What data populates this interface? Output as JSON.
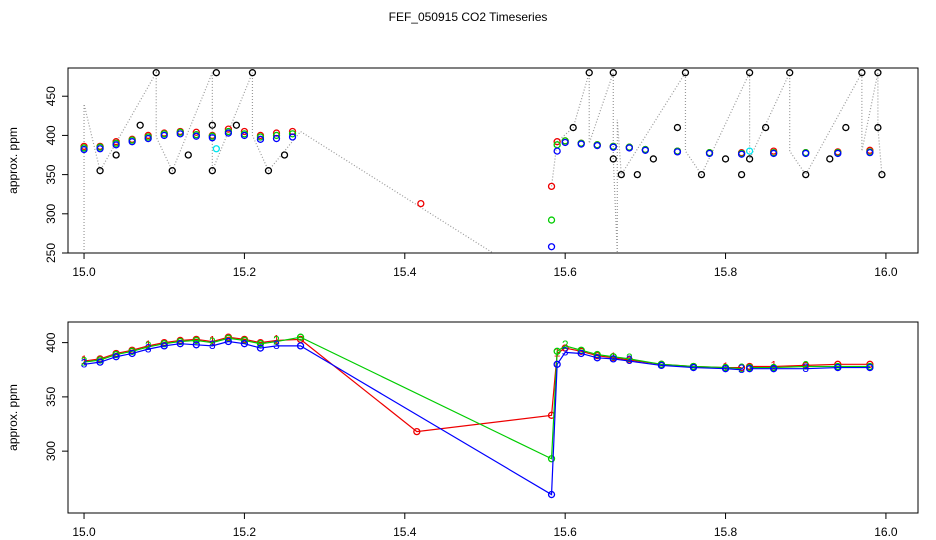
{
  "title": "FEF_050915  CO2 Timeseries",
  "chart_data": [
    {
      "type": "scatter",
      "ylabel": "approx. ppm",
      "xlim": [
        14.98,
        16.04
      ],
      "ylim": [
        250,
        486
      ],
      "xticks": [
        {
          "value": 15,
          "label": "15.0"
        },
        15.2,
        15.4,
        15.6,
        15.8,
        {
          "value": 16,
          "label": "16.0"
        }
      ],
      "yticks": [
        250,
        300,
        350,
        400,
        450
      ],
      "series": [
        {
          "color": "#999999",
          "mode": "line",
          "x": [
            15.0,
            15.0,
            15.02,
            15.09,
            15.09,
            15.11,
            15.16,
            15.16,
            15.21,
            15.21,
            15.23,
            15.27,
            15.51,
            15.55,
            15.583,
            15.59,
            15.61,
            15.63,
            15.63,
            15.66,
            15.66,
            15.665,
            15.665,
            15.67,
            15.75,
            15.75,
            15.77,
            15.83,
            15.83,
            15.88,
            15.88,
            15.9,
            15.97,
            15.97,
            15.99,
            15.99,
            15.995
          ],
          "values": [
            250,
            440,
            355,
            480,
            398,
            355,
            480,
            355,
            480,
            400,
            355,
            405,
            250,
            null,
            335,
            392,
            410,
            480,
            390,
            480,
            370,
            250,
            420,
            350,
            480,
            380,
            350,
            480,
            370,
            480,
            380,
            350,
            480,
            380,
            480,
            410,
            350
          ]
        },
        {
          "color": "#000000",
          "mode": "points",
          "x": [
            15.02,
            15.04,
            15.07,
            15.09,
            15.11,
            15.13,
            15.16,
            15.16,
            15.165,
            15.19,
            15.21,
            15.23,
            15.25,
            15.61,
            15.63,
            15.66,
            15.66,
            15.67,
            15.69,
            15.71,
            15.74,
            15.75,
            15.77,
            15.8,
            15.82,
            15.83,
            15.83,
            15.85,
            15.88,
            15.9,
            15.93,
            15.95,
            15.97,
            15.99,
            15.99,
            15.995
          ],
          "values": [
            355,
            375,
            413,
            480,
            355,
            375,
            355,
            413,
            480,
            413,
            480,
            355,
            375,
            410,
            480,
            480,
            370,
            350,
            350,
            370,
            410,
            480,
            350,
            370,
            350,
            480,
            370,
            410,
            480,
            350,
            370,
            410,
            480,
            480,
            410,
            350
          ]
        },
        {
          "color": "#ee0000",
          "mode": "points",
          "x": [
            15.0,
            15.02,
            15.04,
            15.06,
            15.08,
            15.1,
            15.12,
            15.14,
            15.16,
            15.18,
            15.2,
            15.22,
            15.24,
            15.26,
            15.42,
            15.583,
            15.59,
            15.6,
            15.62,
            15.64,
            15.66,
            15.68,
            15.7,
            15.74,
            15.78,
            15.82,
            15.86,
            15.9,
            15.94,
            15.98
          ],
          "values": [
            386,
            386,
            392,
            395,
            400,
            403,
            405,
            404,
            400,
            408,
            405,
            400,
            403,
            405,
            313,
            335,
            392,
            393,
            390,
            388,
            386,
            385,
            382,
            380,
            378,
            378,
            380,
            378,
            379,
            381
          ]
        },
        {
          "color": "#00cc00",
          "mode": "points",
          "x": [
            15.0,
            15.02,
            15.04,
            15.06,
            15.08,
            15.1,
            15.12,
            15.14,
            15.16,
            15.18,
            15.2,
            15.22,
            15.24,
            15.26,
            15.583,
            15.59,
            15.6,
            15.62,
            15.64,
            15.66,
            15.68,
            15.7,
            15.74,
            15.78,
            15.82,
            15.86,
            15.9,
            15.94,
            15.98
          ],
          "values": [
            384,
            385,
            390,
            394,
            398,
            402,
            404,
            401,
            399,
            405,
            402,
            398,
            400,
            402,
            292,
            388,
            393,
            390,
            388,
            386,
            385,
            382,
            380,
            378,
            377,
            378,
            378,
            378,
            379
          ]
        },
        {
          "color": "#0000ff",
          "mode": "points",
          "x": [
            15.0,
            15.02,
            15.04,
            15.06,
            15.08,
            15.1,
            15.12,
            15.14,
            15.16,
            15.18,
            15.2,
            15.22,
            15.24,
            15.26,
            15.583,
            15.59,
            15.6,
            15.62,
            15.64,
            15.66,
            15.68,
            15.7,
            15.74,
            15.78,
            15.82,
            15.86,
            15.9,
            15.94,
            15.98
          ],
          "values": [
            382,
            383,
            388,
            392,
            396,
            400,
            402,
            399,
            397,
            403,
            400,
            395,
            396,
            398,
            258,
            380,
            391,
            389,
            387,
            385,
            384,
            381,
            379,
            377,
            376,
            377,
            377,
            377,
            378
          ]
        },
        {
          "color": "#00e5ee",
          "mode": "points",
          "x": [
            15.165,
            15.83
          ],
          "values": [
            383,
            380
          ]
        }
      ]
    },
    {
      "type": "line",
      "ylabel": "approx. ppm",
      "xlim": [
        14.98,
        16.04
      ],
      "ylim": [
        243,
        419
      ],
      "xticks": [
        {
          "value": 15,
          "label": "15.0"
        },
        15.2,
        15.4,
        15.6,
        15.8,
        {
          "value": 16,
          "label": "16.0"
        }
      ],
      "yticks": [
        300,
        350,
        400
      ],
      "series": [
        {
          "color": "#ee0000",
          "marker": "1",
          "x": [
            15.0,
            15.02,
            15.04,
            15.06,
            15.08,
            15.1,
            15.12,
            15.14,
            15.16,
            15.18,
            15.2,
            15.22,
            15.24,
            15.27,
            15.415,
            15.583,
            15.59,
            15.6,
            15.62,
            15.64,
            15.66,
            15.68,
            15.72,
            15.76,
            15.8,
            15.82,
            15.825,
            15.83,
            15.86,
            15.9,
            15.94,
            15.98
          ],
          "values": [
            383,
            385,
            390,
            393,
            397,
            400,
            402,
            403,
            401,
            405,
            403,
            400,
            402,
            403,
            318,
            333,
            390,
            395,
            392,
            388,
            386,
            384,
            380,
            378,
            377,
            377,
            null,
            378,
            378,
            379,
            380,
            380
          ]
        },
        {
          "color": "#00cc00",
          "marker": "2",
          "x": [
            15.0,
            15.02,
            15.04,
            15.06,
            15.08,
            15.1,
            15.12,
            15.14,
            15.16,
            15.18,
            15.2,
            15.22,
            15.24,
            15.27,
            15.583,
            15.59,
            15.6,
            15.62,
            15.64,
            15.66,
            15.68,
            15.72,
            15.76,
            15.8,
            15.82,
            15.825,
            15.83,
            15.86,
            15.9,
            15.94,
            15.98
          ],
          "values": [
            382,
            384,
            389,
            392,
            396,
            399,
            401,
            402,
            400,
            404,
            402,
            399,
            401,
            405,
            293,
            392,
            397,
            393,
            389,
            387,
            385,
            380,
            378,
            377,
            376,
            null,
            377,
            377,
            378,
            378,
            378
          ]
        },
        {
          "color": "#0000ff",
          "marker": "3",
          "x": [
            15.0,
            15.02,
            15.04,
            15.06,
            15.08,
            15.1,
            15.12,
            15.14,
            15.16,
            15.18,
            15.2,
            15.22,
            15.24,
            15.27,
            15.583,
            15.59,
            15.6,
            15.62,
            15.64,
            15.66,
            15.68,
            15.72,
            15.76,
            15.8,
            15.82,
            15.825,
            15.83,
            15.86,
            15.9,
            15.94,
            15.98
          ],
          "values": [
            380,
            382,
            387,
            390,
            394,
            397,
            399,
            398,
            397,
            401,
            399,
            395,
            397,
            397,
            260,
            380,
            391,
            390,
            386,
            385,
            383,
            379,
            377,
            376,
            375,
            null,
            376,
            376,
            376,
            377,
            377
          ]
        }
      ]
    }
  ]
}
